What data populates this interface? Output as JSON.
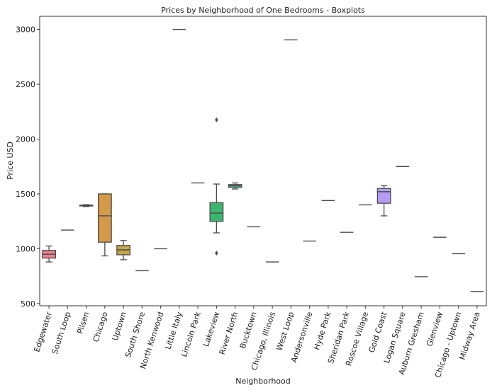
{
  "chart_data": {
    "type": "box",
    "title": "Prices by Neighborhood of One Bedrooms - Boxplots",
    "xlabel": "Neighborhood",
    "ylabel": "Price USD",
    "ylim": [
      480,
      3120
    ],
    "yticks": [
      500,
      1000,
      1500,
      2000,
      2500,
      3000
    ],
    "categories": [
      "Edgewater",
      "South Loop",
      "Pilsen",
      "Chicago",
      "Uptown",
      "South Shore",
      "North Kenwood",
      "Little Italy",
      "Lincoln Park",
      "Lakeview",
      "River North",
      "Bucktown",
      "Chicago, Illinois",
      "West Loop",
      "Andersonville",
      "Hyde Park",
      "Sheridan Park",
      "Roscoe Village",
      "Gold Coast",
      "Logan Square",
      "Auburn Gresham",
      "Glenview",
      "Chicago - Uptown",
      "Midway Area"
    ],
    "boxes": [
      {
        "name": "Edgewater",
        "whislo": 880,
        "q1": 915,
        "median": 950,
        "q3": 985,
        "whishi": 1025,
        "fliers": [],
        "color": "#e9808b"
      },
      {
        "name": "South Loop",
        "whislo": 1170,
        "q1": 1170,
        "median": 1170,
        "q3": 1170,
        "whishi": 1170,
        "fliers": [],
        "color": "#dba56a"
      },
      {
        "name": "Pilsen",
        "whislo": 1385,
        "q1": 1390,
        "median": 1395,
        "q3": 1398,
        "whishi": 1402,
        "fliers": [],
        "color": "#d1a35a"
      },
      {
        "name": "Chicago",
        "whislo": 935,
        "q1": 1060,
        "median": 1300,
        "q3": 1500,
        "whishi": 1500,
        "fliers": [],
        "color": "#d49a4c"
      },
      {
        "name": "Uptown",
        "whislo": 900,
        "q1": 945,
        "median": 990,
        "q3": 1030,
        "whishi": 1075,
        "fliers": [],
        "color": "#c5a649"
      },
      {
        "name": "South Shore",
        "whislo": 800,
        "q1": 800,
        "median": 800,
        "q3": 800,
        "whishi": 800,
        "fliers": [],
        "color": "#b4a44a"
      },
      {
        "name": "North Kenwood",
        "whislo": 1000,
        "q1": 1000,
        "median": 1000,
        "q3": 1000,
        "whishi": 1000,
        "fliers": [],
        "color": "#9fab48"
      },
      {
        "name": "Little Italy",
        "whislo": 3000,
        "q1": 3000,
        "median": 3000,
        "q3": 3000,
        "whishi": 3000,
        "fliers": [],
        "color": "#84b34f"
      },
      {
        "name": "Lincoln Park",
        "whislo": 1600,
        "q1": 1600,
        "median": 1600,
        "q3": 1600,
        "whishi": 1600,
        "fliers": [],
        "color": "#5fb55a"
      },
      {
        "name": "Lakeview",
        "whislo": 1145,
        "q1": 1250,
        "median": 1325,
        "q3": 1420,
        "whishi": 1590,
        "fliers": [
          960,
          2175
        ],
        "color": "#3cb66e"
      },
      {
        "name": "River North",
        "whislo": 1545,
        "q1": 1560,
        "median": 1575,
        "q3": 1585,
        "whishi": 1600,
        "fliers": [],
        "color": "#3ba57a"
      },
      {
        "name": "Bucktown",
        "whislo": 1200,
        "q1": 1200,
        "median": 1200,
        "q3": 1200,
        "whishi": 1200,
        "fliers": [],
        "color": "#36ad8f"
      },
      {
        "name": "Chicago, Illinois",
        "whislo": 880,
        "q1": 880,
        "median": 880,
        "q3": 880,
        "whishi": 880,
        "fliers": [],
        "color": "#38aa9e"
      },
      {
        "name": "West Loop",
        "whislo": 2905,
        "q1": 2905,
        "median": 2905,
        "q3": 2905,
        "whishi": 2905,
        "fliers": [],
        "color": "#3aa9ad"
      },
      {
        "name": "Andersonville",
        "whislo": 1070,
        "q1": 1070,
        "median": 1070,
        "q3": 1070,
        "whishi": 1070,
        "fliers": [],
        "color": "#3ba6bd"
      },
      {
        "name": "Hyde Park",
        "whislo": 1440,
        "q1": 1440,
        "median": 1440,
        "q3": 1440,
        "whishi": 1440,
        "fliers": [],
        "color": "#40a1cf"
      },
      {
        "name": "Sheridan Park",
        "whislo": 1150,
        "q1": 1150,
        "median": 1150,
        "q3": 1150,
        "whishi": 1150,
        "fliers": [],
        "color": "#539be0"
      },
      {
        "name": "Roscoe Village",
        "whislo": 1400,
        "q1": 1400,
        "median": 1400,
        "q3": 1400,
        "whishi": 1400,
        "fliers": [],
        "color": "#7f95e8"
      },
      {
        "name": "Gold Coast",
        "whislo": 1300,
        "q1": 1415,
        "median": 1520,
        "q3": 1550,
        "whishi": 1575,
        "fliers": [],
        "color": "#b29cf4"
      },
      {
        "name": "Logan Square",
        "whislo": 1750,
        "q1": 1750,
        "median": 1750,
        "q3": 1750,
        "whishi": 1750,
        "fliers": [],
        "color": "#c892ee"
      },
      {
        "name": "Auburn Gresham",
        "whislo": 745,
        "q1": 745,
        "median": 745,
        "q3": 745,
        "whishi": 745,
        "fliers": [],
        "color": "#d98ae6"
      },
      {
        "name": "Glenview",
        "whislo": 1105,
        "q1": 1105,
        "median": 1105,
        "q3": 1105,
        "whishi": 1105,
        "fliers": [],
        "color": "#e283d4"
      },
      {
        "name": "Chicago - Uptown",
        "whislo": 955,
        "q1": 955,
        "median": 955,
        "q3": 955,
        "whishi": 955,
        "fliers": [],
        "color": "#e784bd"
      },
      {
        "name": "Midway Area",
        "whislo": 610,
        "q1": 610,
        "median": 610,
        "q3": 610,
        "whishi": 610,
        "fliers": [],
        "color": "#e884a4"
      }
    ]
  }
}
